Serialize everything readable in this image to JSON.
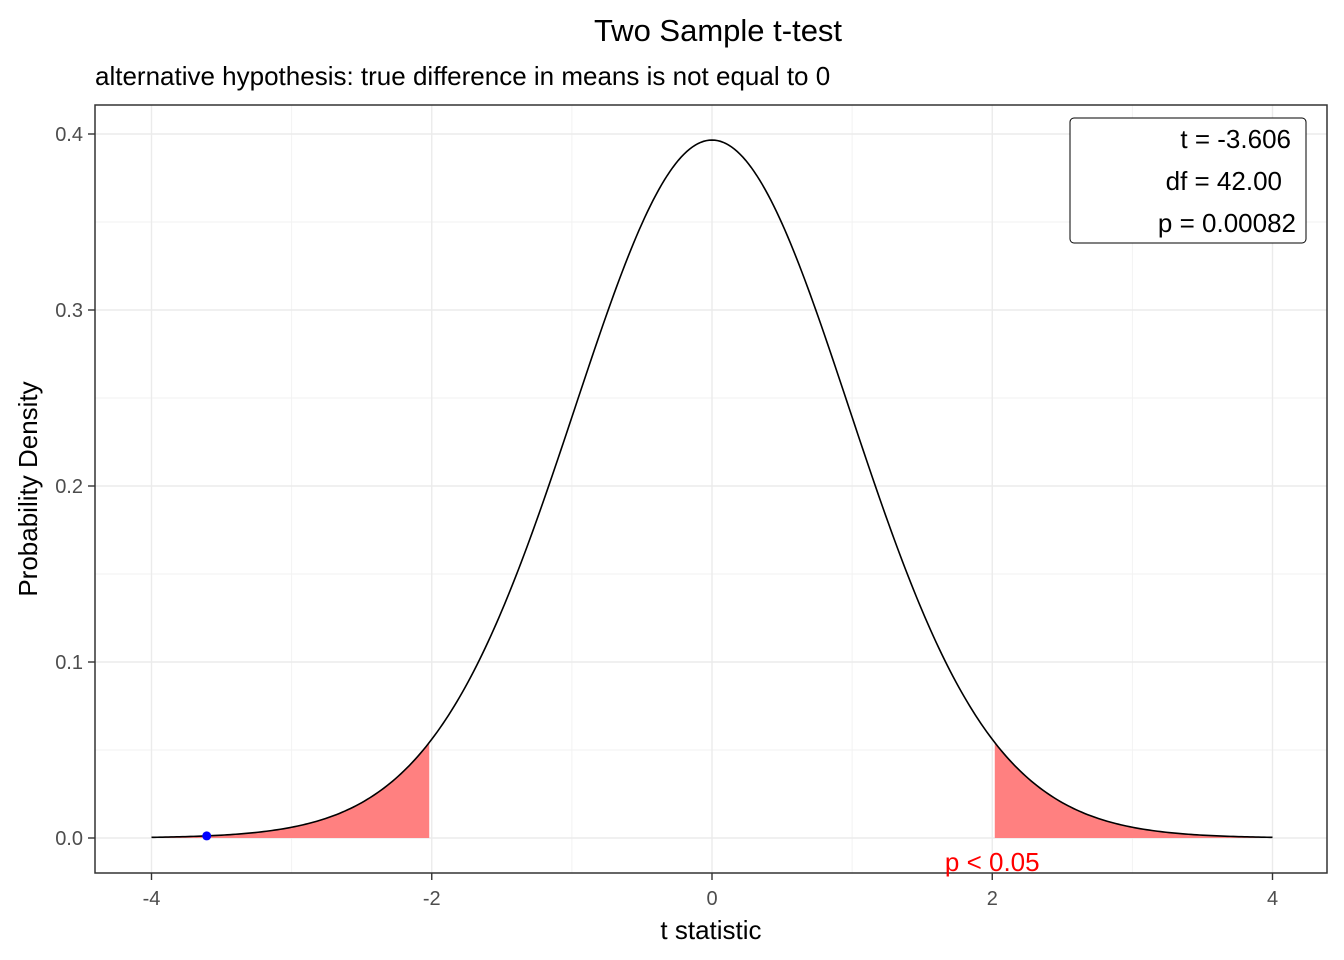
{
  "chart_data": {
    "type": "line",
    "title": "Two Sample t-test",
    "subtitle": "alternative hypothesis: true difference in means is not equal to 0",
    "xlabel": "t statistic",
    "ylabel": "Probability Density",
    "xlim": [
      -4,
      4
    ],
    "ylim": [
      0,
      0.4
    ],
    "xticks": [
      -4,
      -2,
      0,
      2,
      4
    ],
    "xtick_labels": [
      "-4",
      "-2",
      "0",
      "2",
      "4"
    ],
    "yticks": [
      0.0,
      0.1,
      0.2,
      0.3,
      0.4
    ],
    "ytick_labels": [
      "0.0",
      "0.1",
      "0.2",
      "0.3",
      "0.4"
    ],
    "grid": true,
    "distribution": "t",
    "df": 42,
    "critical_value": 2.018,
    "rejection_region_color": "#ff8080",
    "observed_t": -3.606,
    "observed_point_color": "#0000ff",
    "stats_box": {
      "position": "top-right",
      "lines": [
        "t = -3.606",
        "df = 42.00",
        "p = 0.00082"
      ]
    },
    "annotation": {
      "text": "p < 0.05",
      "x": 2.0,
      "color": "#ff0000"
    }
  }
}
